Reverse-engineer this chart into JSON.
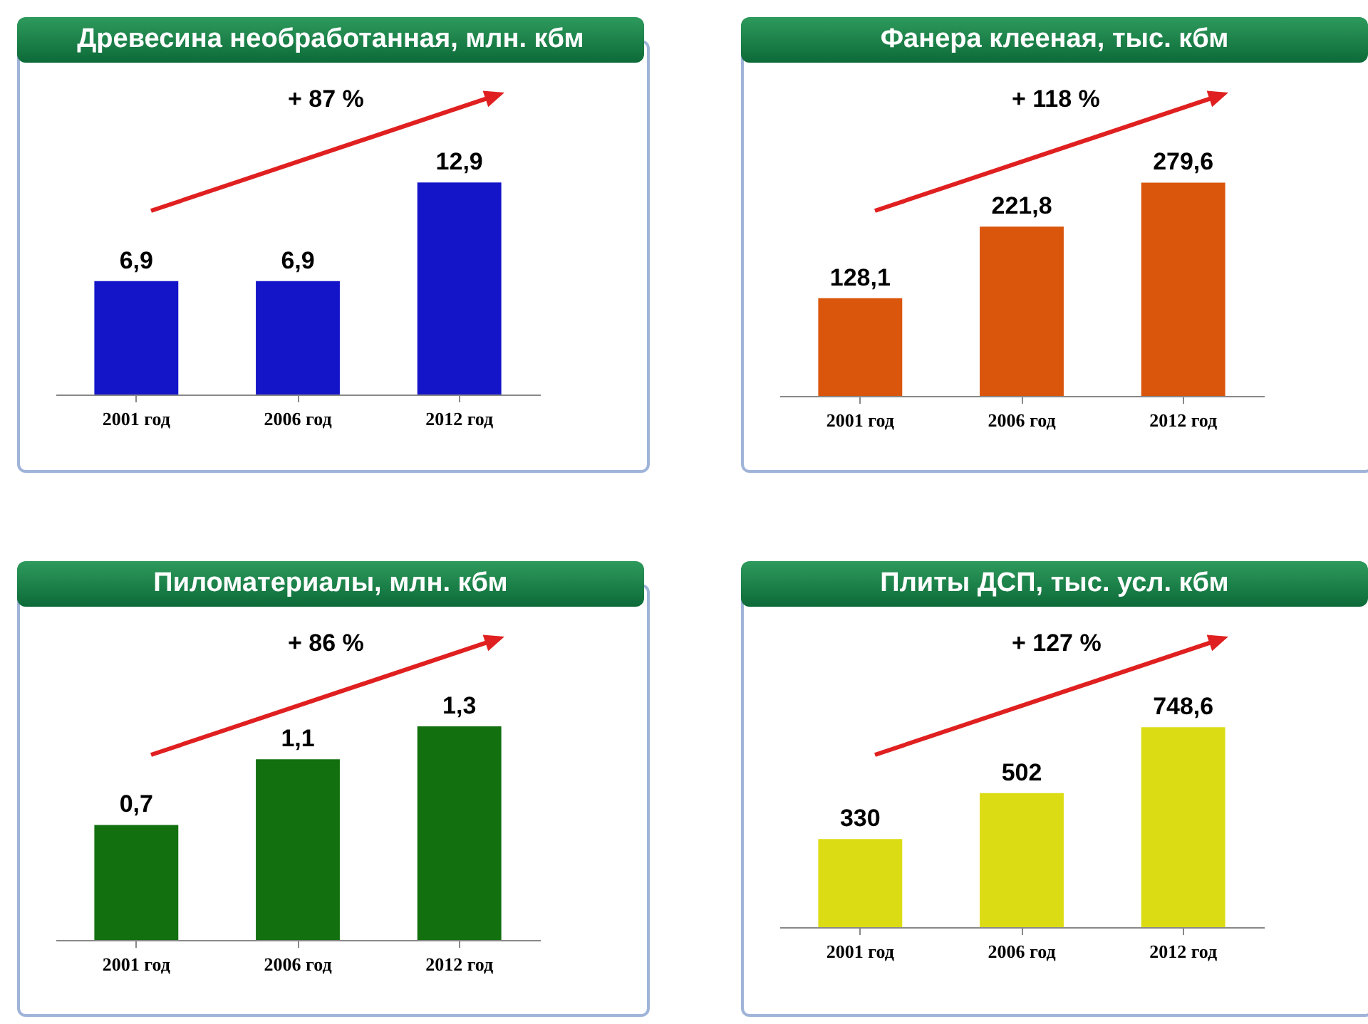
{
  "chart_data": [
    {
      "type": "bar",
      "title": "Древесина необработанная, млн. кбм",
      "categories": [
        "2001 год",
        "2006 год",
        "2012 год"
      ],
      "values": [
        6.9,
        6.9,
        12.9
      ],
      "value_labels": [
        "6,9",
        "6,9",
        "12,9"
      ],
      "color": "#1414c8",
      "annotations": [
        "+ 87 %"
      ]
    },
    {
      "type": "bar",
      "title": "Фанера клееная, тыс. кбм",
      "categories": [
        "2001 год",
        "2006 год",
        "2012 год"
      ],
      "values": [
        128.1,
        221.8,
        279.6
      ],
      "value_labels": [
        "128,1",
        "221,8",
        "279,6"
      ],
      "color": "#d9560c",
      "annotations": [
        "+ 118 %"
      ]
    },
    {
      "type": "bar",
      "title": "Пиломатериалы, млн. кбм",
      "categories": [
        "2001 год",
        "2006 год",
        "2012 год"
      ],
      "values": [
        0.7,
        1.1,
        1.3
      ],
      "value_labels": [
        "0,7",
        "1,1",
        "1,3"
      ],
      "color": "#12700f",
      "annotations": [
        "+ 86 %"
      ]
    },
    {
      "type": "bar",
      "title": "Плиты ДСП, тыс. усл. кбм",
      "categories": [
        "2001 год",
        "2006 год",
        "2012 год"
      ],
      "values": [
        330,
        502,
        748.6
      ],
      "value_labels": [
        "330",
        "502",
        "748,6"
      ],
      "color": "#dcdc14",
      "annotations": [
        "+ 127 %"
      ]
    }
  ]
}
